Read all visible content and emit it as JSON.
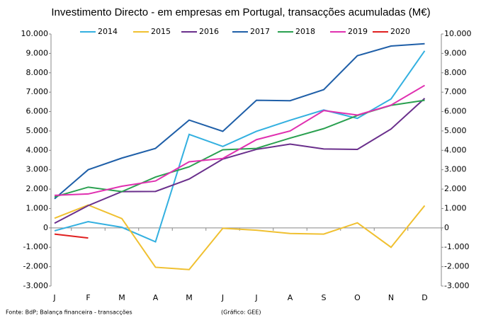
{
  "chart_data": {
    "type": "line",
    "title": "Investimento Directo - em empresas em Portugal, transacções acumuladas (M€)",
    "source": "Fonte: BdP; Balança financeira - transacções",
    "credit": "(Gráfico: GEE)",
    "categories": [
      "J",
      "F",
      "M",
      "A",
      "M",
      "J",
      "J",
      "A",
      "S",
      "O",
      "N",
      "D"
    ],
    "ylim": [
      -3000,
      10000
    ],
    "yticks": [
      {
        "value": -3000,
        "label": "-3.000"
      },
      {
        "value": -2000,
        "label": "-2.000"
      },
      {
        "value": -1000,
        "label": "-1.000"
      },
      0,
      {
        "value": 1000,
        "label": "1.000"
      },
      {
        "value": 2000,
        "label": "2.000"
      },
      {
        "value": 3000,
        "label": "3.000"
      },
      {
        "value": 4000,
        "label": "4.000"
      },
      {
        "value": 5000,
        "label": "5.000"
      },
      {
        "value": 6000,
        "label": "6.000"
      },
      {
        "value": 7000,
        "label": "7.000"
      },
      {
        "value": 8000,
        "label": "8.000"
      },
      {
        "value": 9000,
        "label": "9.000"
      },
      {
        "value": 10000,
        "label": "10.000"
      }
    ],
    "grid": false,
    "series": [
      {
        "name": "2014",
        "color": "#33b0e0",
        "values": [
          -150,
          320,
          30,
          -720,
          4820,
          4200,
          4980,
          5550,
          6080,
          5650,
          6650,
          9130
        ]
      },
      {
        "name": "2015",
        "color": "#f0c030",
        "values": [
          500,
          1180,
          480,
          -2030,
          -2150,
          -20,
          -120,
          -290,
          -320,
          260,
          -1000,
          1150
        ]
      },
      {
        "name": "2016",
        "color": "#6a2f8c",
        "values": [
          240,
          1150,
          1870,
          1880,
          2520,
          3550,
          4050,
          4320,
          4070,
          4050,
          5100,
          6680
        ]
      },
      {
        "name": "2017",
        "color": "#1f5fa8",
        "values": [
          1500,
          3000,
          3600,
          4100,
          5560,
          4980,
          6580,
          6560,
          7130,
          8880,
          9380,
          9500
        ]
      },
      {
        "name": "2018",
        "color": "#2aa050",
        "values": [
          1600,
          2100,
          1870,
          2620,
          3150,
          4030,
          4100,
          4630,
          5120,
          5800,
          6320,
          6580
        ]
      },
      {
        "name": "2019",
        "color": "#e030b0",
        "values": [
          1680,
          1750,
          2150,
          2420,
          3410,
          3580,
          4550,
          5000,
          6050,
          5820,
          6330,
          7350
        ]
      },
      {
        "name": "2020",
        "color": "#e02020",
        "values": [
          -320,
          -520,
          null,
          null,
          null,
          null,
          null,
          null,
          null,
          null,
          null,
          null
        ]
      }
    ]
  }
}
